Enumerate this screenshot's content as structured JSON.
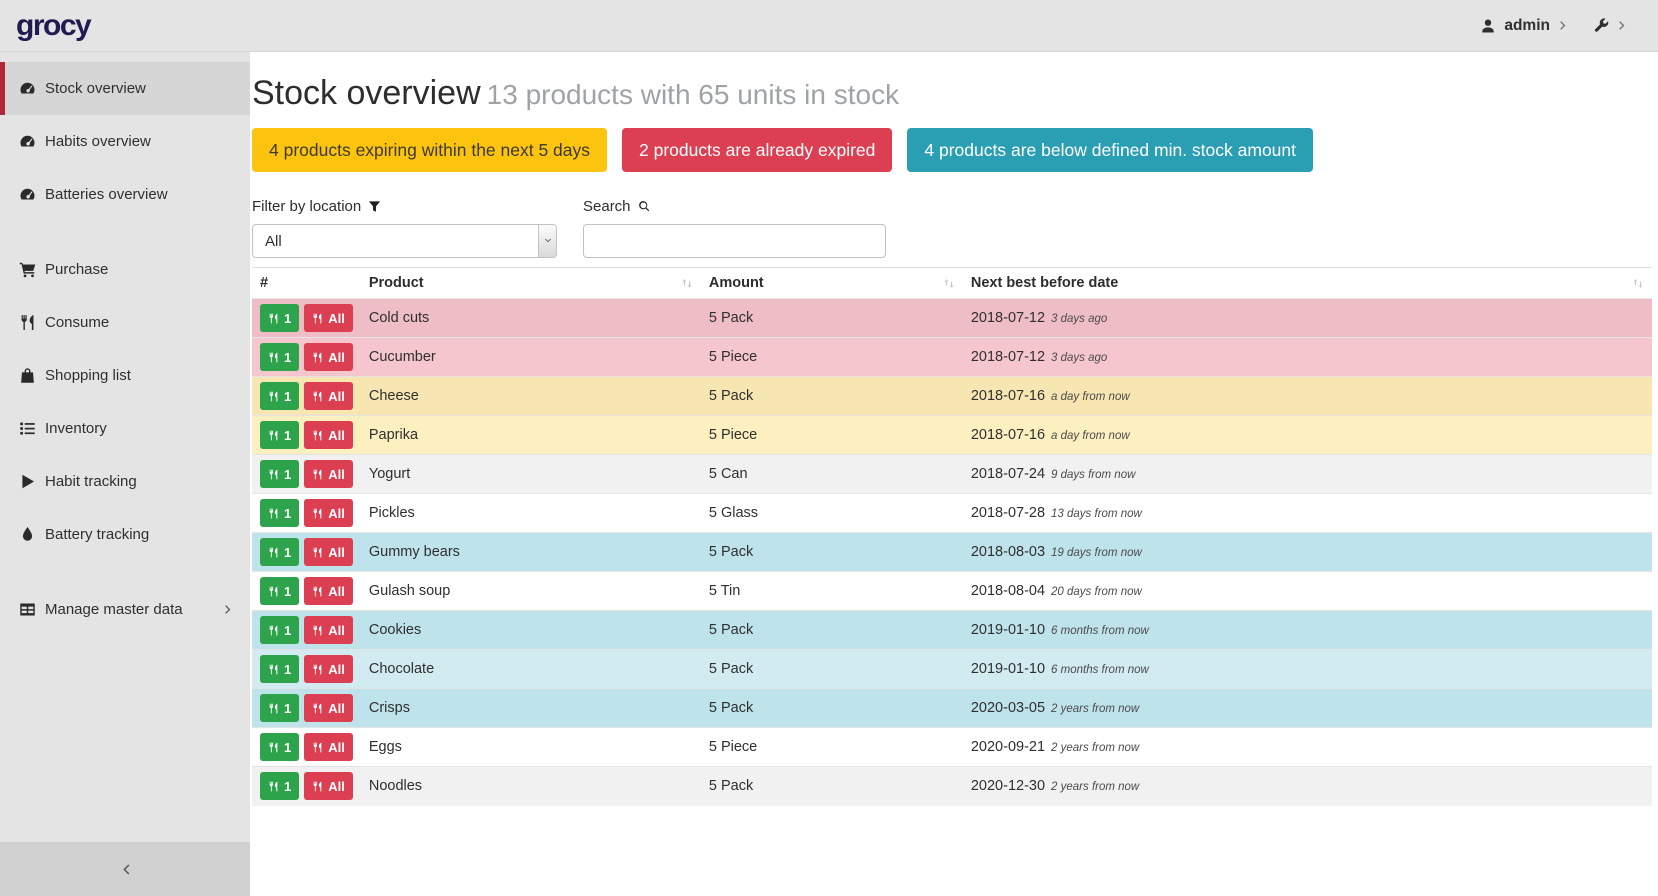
{
  "colors": {
    "logo": "#201b50",
    "accent": "#b02738",
    "warning": "#fdc40f",
    "danger": "#dc3f51",
    "info": "#2a9eb3",
    "success": "#2da44b",
    "row-danger": "#f5c6cd",
    "row-danger-d": "#efbdc5",
    "row-warning": "#fcefc0",
    "row-warning-d": "#f7e6b1",
    "row-info": "#d2ebf1",
    "row-info-d": "#bfe3eb"
  },
  "topbar": {
    "logo": "grocy",
    "user_label": "admin"
  },
  "sidebar": {
    "items": [
      {
        "label": "Stock overview",
        "icon": "tachometer",
        "active": true,
        "section": 0
      },
      {
        "label": "Habits overview",
        "icon": "tachometer",
        "section": 0
      },
      {
        "label": "Batteries overview",
        "icon": "tachometer",
        "section": 0
      },
      {
        "label": "Purchase",
        "icon": "cart",
        "section": 1
      },
      {
        "label": "Consume",
        "icon": "utensils",
        "section": 1
      },
      {
        "label": "Shopping list",
        "icon": "bag",
        "section": 1
      },
      {
        "label": "Inventory",
        "icon": "list",
        "section": 1
      },
      {
        "label": "Habit tracking",
        "icon": "play",
        "section": 1
      },
      {
        "label": "Battery tracking",
        "icon": "tint",
        "section": 1
      },
      {
        "label": "Manage master data",
        "icon": "table",
        "section": 2,
        "has_submenu": true
      }
    ]
  },
  "header": {
    "title": "Stock overview",
    "subtitle": "13 products with 65 units in stock"
  },
  "alerts": [
    {
      "label": "4 products expiring within the next 5 days",
      "type": "warning"
    },
    {
      "label": "2 products are already expired",
      "type": "danger"
    },
    {
      "label": "4 products are below defined min. stock amount",
      "type": "info"
    }
  ],
  "filters": {
    "location_label": "Filter by location",
    "location_value": "All",
    "search_label": "Search",
    "search_value": ""
  },
  "table": {
    "columns": [
      "#",
      "Product",
      "Amount",
      "Next best before date"
    ],
    "row_action_labels": {
      "consume_one": "1",
      "consume_all": "All"
    },
    "rows": [
      {
        "product": "Cold cuts",
        "amount": "5 Pack",
        "date": "2018-07-12",
        "relative": "3 days ago",
        "status": "expired"
      },
      {
        "product": "Cucumber",
        "amount": "5 Piece",
        "date": "2018-07-12",
        "relative": "3 days ago",
        "status": "expired"
      },
      {
        "product": "Cheese",
        "amount": "5 Pack",
        "date": "2018-07-16",
        "relative": "a day from now",
        "status": "expiring"
      },
      {
        "product": "Paprika",
        "amount": "5 Piece",
        "date": "2018-07-16",
        "relative": "a day from now",
        "status": "expiring"
      },
      {
        "product": "Yogurt",
        "amount": "5 Can",
        "date": "2018-07-24",
        "relative": "9 days from now",
        "status": ""
      },
      {
        "product": "Pickles",
        "amount": "5 Glass",
        "date": "2018-07-28",
        "relative": "13 days from now",
        "status": ""
      },
      {
        "product": "Gummy bears",
        "amount": "5 Pack",
        "date": "2018-08-03",
        "relative": "19 days from now",
        "status": "belowmin"
      },
      {
        "product": "Gulash soup",
        "amount": "5 Tin",
        "date": "2018-08-04",
        "relative": "20 days from now",
        "status": ""
      },
      {
        "product": "Cookies",
        "amount": "5 Pack",
        "date": "2019-01-10",
        "relative": "6 months from now",
        "status": "belowmin"
      },
      {
        "product": "Chocolate",
        "amount": "5 Pack",
        "date": "2019-01-10",
        "relative": "6 months from now",
        "status": "belowmin"
      },
      {
        "product": "Crisps",
        "amount": "5 Pack",
        "date": "2020-03-05",
        "relative": "2 years from now",
        "status": "belowmin"
      },
      {
        "product": "Eggs",
        "amount": "5 Piece",
        "date": "2020-09-21",
        "relative": "2 years from now",
        "status": ""
      },
      {
        "product": "Noodles",
        "amount": "5 Pack",
        "date": "2020-12-30",
        "relative": "2 years from now",
        "status": ""
      }
    ]
  }
}
